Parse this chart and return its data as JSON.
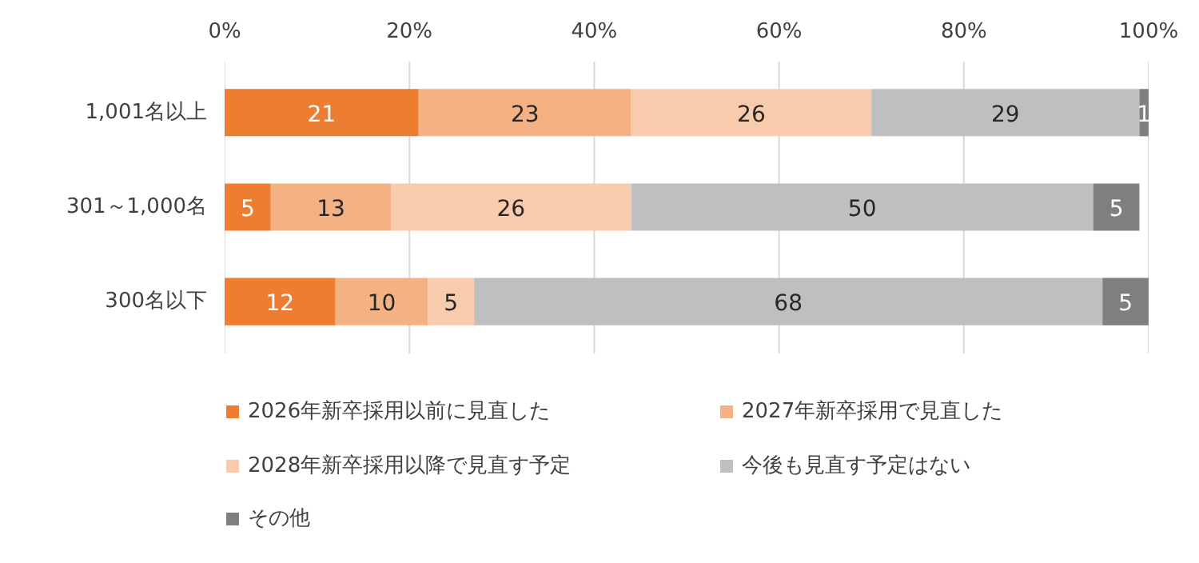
{
  "chart_data": {
    "type": "bar",
    "orientation": "horizontal",
    "stacked": true,
    "data_labels": true,
    "grid": "x",
    "legend": "bottom",
    "categories": [
      "1,001名以上",
      "301～1,000名",
      "300名以下"
    ],
    "xlim": [
      0,
      100
    ],
    "xticks": [
      {
        "value": 0,
        "label": "0%"
      },
      {
        "value": 20,
        "label": "20%"
      },
      {
        "value": 40,
        "label": "40%"
      },
      {
        "value": 60,
        "label": "60%"
      },
      {
        "value": 80,
        "label": "80%"
      },
      {
        "value": 100,
        "label": "100%"
      }
    ],
    "series": [
      {
        "name": "2026年新卒採用以前に見直した",
        "color": "#ed7d31",
        "values": [
          21,
          5,
          12
        ]
      },
      {
        "name": "2027年新卒採用で見直した",
        "color": "#f4b183",
        "values": [
          23,
          13,
          10
        ]
      },
      {
        "name": "2028年新卒採用以降で見直す予定",
        "color": "#f8cbad",
        "values": [
          26,
          26,
          5
        ]
      },
      {
        "name": "今後も見直す予定はない",
        "color": "#bfbfbf",
        "values": [
          29,
          50,
          68
        ]
      },
      {
        "name": "その他",
        "color": "#7f7f7f",
        "values": [
          1,
          5,
          5
        ]
      }
    ]
  }
}
